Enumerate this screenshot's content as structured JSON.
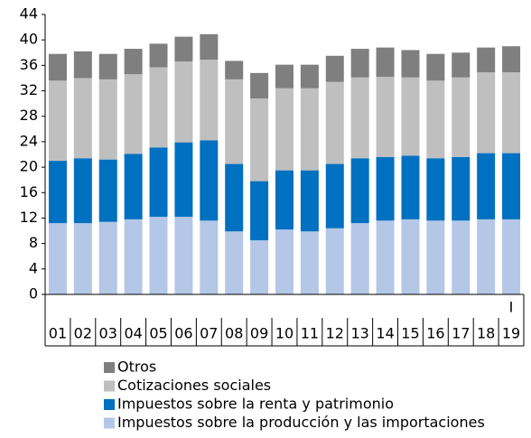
{
  "chart_data": {
    "type": "stacked-bar",
    "categories": [
      "01",
      "02",
      "03",
      "04",
      "05",
      "06",
      "07",
      "08",
      "09",
      "10",
      "11",
      "12",
      "13",
      "14",
      "15",
      "16",
      "17",
      "18",
      "19"
    ],
    "series": [
      {
        "name": "Impuestos sobre la producción y las importaciones",
        "color": "#b4c7e7",
        "values": [
          11.2,
          11.2,
          11.4,
          11.8,
          12.2,
          12.2,
          11.6,
          9.9,
          8.5,
          10.2,
          9.9,
          10.4,
          11.2,
          11.6,
          11.8,
          11.6,
          11.6,
          11.8,
          11.8
        ]
      },
      {
        "name": "Impuestos sobre la renta y patrimonio",
        "color": "#0070c0",
        "values": [
          9.8,
          10.2,
          9.8,
          10.3,
          10.9,
          11.7,
          12.6,
          10.6,
          9.3,
          9.3,
          9.6,
          10.1,
          10.2,
          10.0,
          10.0,
          9.8,
          10.0,
          10.4,
          10.4
        ]
      },
      {
        "name": "Cotizaciones sociales",
        "color": "#bfbfbf",
        "values": [
          12.6,
          12.6,
          12.6,
          12.5,
          12.6,
          12.7,
          12.7,
          13.3,
          13.0,
          12.9,
          12.9,
          12.9,
          12.7,
          12.6,
          12.3,
          12.2,
          12.5,
          12.7,
          12.7
        ]
      },
      {
        "name": "Otros",
        "color": "#7f7f7f",
        "values": [
          4.2,
          4.2,
          4.0,
          4.0,
          3.7,
          3.9,
          4.0,
          2.9,
          4.0,
          3.7,
          3.7,
          4.1,
          4.5,
          4.6,
          4.3,
          4.2,
          3.9,
          3.9,
          4.1
        ]
      }
    ],
    "annotation": "I",
    "ylim": [
      0,
      44
    ],
    "yticks": [
      0,
      4,
      8,
      12,
      16,
      20,
      24,
      28,
      32,
      36,
      40,
      44
    ],
    "grid": false
  }
}
